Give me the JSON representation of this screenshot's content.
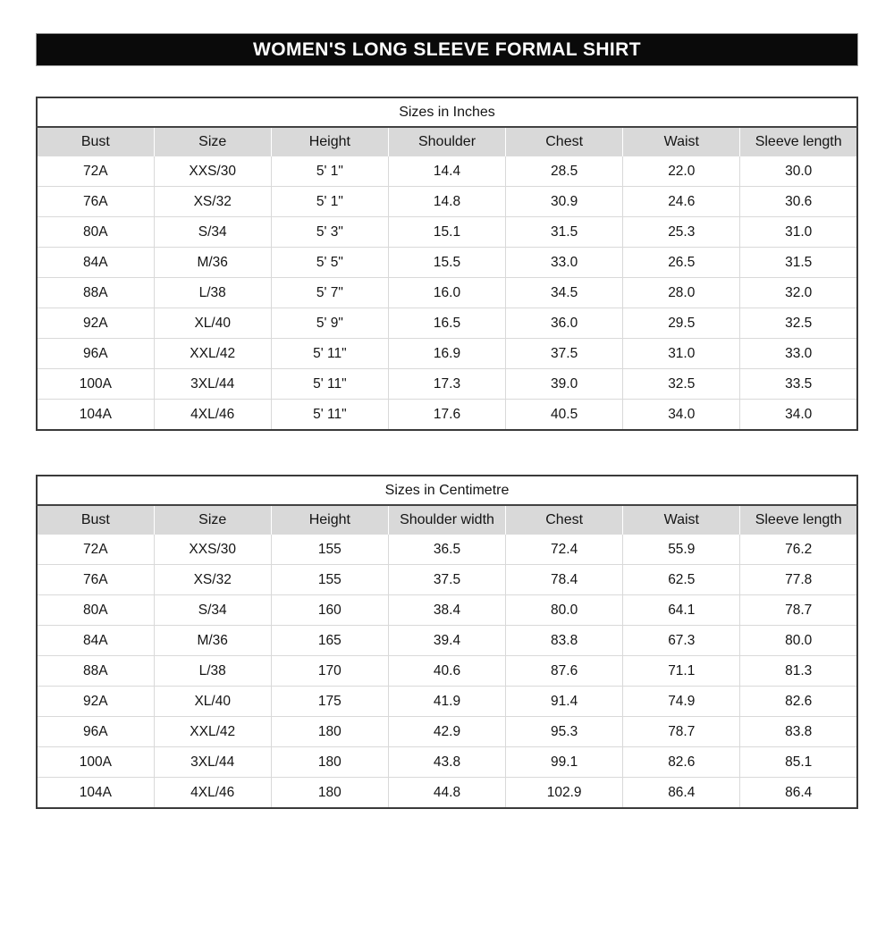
{
  "page_title": "WOMEN'S LONG SLEEVE FORMAL SHIRT",
  "colors": {
    "banner_bg": "#0a0a0a",
    "banner_text": "#ffffff",
    "header_row_bg": "#d9d9d9",
    "grid_line": "#d9d9d9",
    "outer_border": "#3a3a3a",
    "body_text": "#141414"
  },
  "tables": [
    {
      "title": "Sizes in Inches",
      "columns": [
        "Bust",
        "Size",
        "Height",
        "Shoulder",
        "Chest",
        "Waist",
        "Sleeve length"
      ],
      "rows": [
        [
          "72A",
          "XXS/30",
          "5' 1\"",
          "14.4",
          "28.5",
          "22.0",
          "30.0"
        ],
        [
          "76A",
          "XS/32",
          "5' 1\"",
          "14.8",
          "30.9",
          "24.6",
          "30.6"
        ],
        [
          "80A",
          "S/34",
          "5' 3\"",
          "15.1",
          "31.5",
          "25.3",
          "31.0"
        ],
        [
          "84A",
          "M/36",
          "5' 5\"",
          "15.5",
          "33.0",
          "26.5",
          "31.5"
        ],
        [
          "88A",
          "L/38",
          "5' 7\"",
          "16.0",
          "34.5",
          "28.0",
          "32.0"
        ],
        [
          "92A",
          "XL/40",
          "5' 9\"",
          "16.5",
          "36.0",
          "29.5",
          "32.5"
        ],
        [
          "96A",
          "XXL/42",
          "5' 11\"",
          "16.9",
          "37.5",
          "31.0",
          "33.0"
        ],
        [
          "100A",
          "3XL/44",
          "5' 11\"",
          "17.3",
          "39.0",
          "32.5",
          "33.5"
        ],
        [
          "104A",
          "4XL/46",
          "5' 11\"",
          "17.6",
          "40.5",
          "34.0",
          "34.0"
        ]
      ]
    },
    {
      "title": "Sizes in Centimetre",
      "columns": [
        "Bust",
        "Size",
        "Height",
        "Shoulder width",
        "Chest",
        "Waist",
        "Sleeve length"
      ],
      "rows": [
        [
          "72A",
          "XXS/30",
          "155",
          "36.5",
          "72.4",
          "55.9",
          "76.2"
        ],
        [
          "76A",
          "XS/32",
          "155",
          "37.5",
          "78.4",
          "62.5",
          "77.8"
        ],
        [
          "80A",
          "S/34",
          "160",
          "38.4",
          "80.0",
          "64.1",
          "78.7"
        ],
        [
          "84A",
          "M/36",
          "165",
          "39.4",
          "83.8",
          "67.3",
          "80.0"
        ],
        [
          "88A",
          "L/38",
          "170",
          "40.6",
          "87.6",
          "71.1",
          "81.3"
        ],
        [
          "92A",
          "XL/40",
          "175",
          "41.9",
          "91.4",
          "74.9",
          "82.6"
        ],
        [
          "96A",
          "XXL/42",
          "180",
          "42.9",
          "95.3",
          "78.7",
          "83.8"
        ],
        [
          "100A",
          "3XL/44",
          "180",
          "43.8",
          "99.1",
          "82.6",
          "85.1"
        ],
        [
          "104A",
          "4XL/46",
          "180",
          "44.8",
          "102.9",
          "86.4",
          "86.4"
        ]
      ]
    }
  ]
}
